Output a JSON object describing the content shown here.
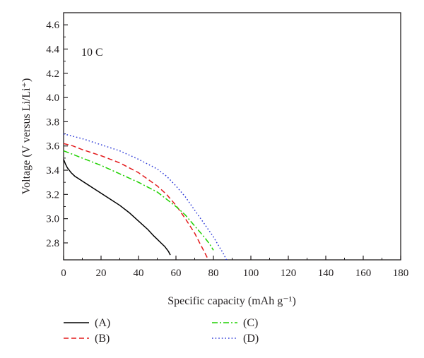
{
  "chart_data": {
    "type": "line",
    "annotation": "10 C",
    "xlabel": "Specific capacity (mAh g⁻¹)",
    "ylabel": "Voltage (V versus Li/Li⁺)",
    "xlim": [
      0,
      180
    ],
    "ylim": [
      2.66,
      4.7
    ],
    "xticks": [
      0,
      20,
      40,
      60,
      80,
      100,
      120,
      140,
      160,
      180
    ],
    "yticks": [
      2.8,
      3.0,
      3.2,
      3.4,
      3.6,
      3.8,
      4.0,
      4.2,
      4.4,
      4.6
    ],
    "grid": false,
    "legend_position": "bottom",
    "series": [
      {
        "name": "(A)",
        "color": "#000000",
        "dash": "solid",
        "x": [
          0,
          1,
          2,
          4,
          6,
          8,
          10,
          15,
          20,
          25,
          30,
          35,
          40,
          45,
          48,
          50,
          52,
          54,
          56,
          57
        ],
        "y": [
          3.49,
          3.45,
          3.42,
          3.38,
          3.35,
          3.33,
          3.31,
          3.26,
          3.21,
          3.16,
          3.11,
          3.05,
          2.98,
          2.91,
          2.86,
          2.83,
          2.8,
          2.77,
          2.73,
          2.7
        ]
      },
      {
        "name": "(B)",
        "color": "#e31a1c",
        "dash": "dash",
        "x": [
          0,
          5,
          10,
          20,
          30,
          40,
          50,
          55,
          60,
          65,
          70,
          73,
          75,
          77
        ],
        "y": [
          3.62,
          3.6,
          3.57,
          3.52,
          3.46,
          3.38,
          3.27,
          3.2,
          3.11,
          3.0,
          2.88,
          2.79,
          2.73,
          2.67
        ]
      },
      {
        "name": "(C)",
        "color": "#1fd100",
        "dash": "dashdot",
        "x": [
          0,
          5,
          10,
          20,
          30,
          40,
          50,
          55,
          60,
          65,
          70,
          75,
          78,
          80
        ],
        "y": [
          3.56,
          3.53,
          3.5,
          3.44,
          3.37,
          3.3,
          3.22,
          3.16,
          3.1,
          3.03,
          2.94,
          2.85,
          2.79,
          2.74
        ]
      },
      {
        "name": "(D)",
        "color": "#2e3bd8",
        "dash": "dot",
        "x": [
          0,
          10,
          20,
          30,
          40,
          50,
          55,
          60,
          65,
          70,
          75,
          80,
          83,
          85,
          87
        ],
        "y": [
          3.7,
          3.66,
          3.61,
          3.56,
          3.49,
          3.41,
          3.35,
          3.27,
          3.18,
          3.07,
          2.96,
          2.85,
          2.77,
          2.72,
          2.66
        ]
      }
    ]
  }
}
